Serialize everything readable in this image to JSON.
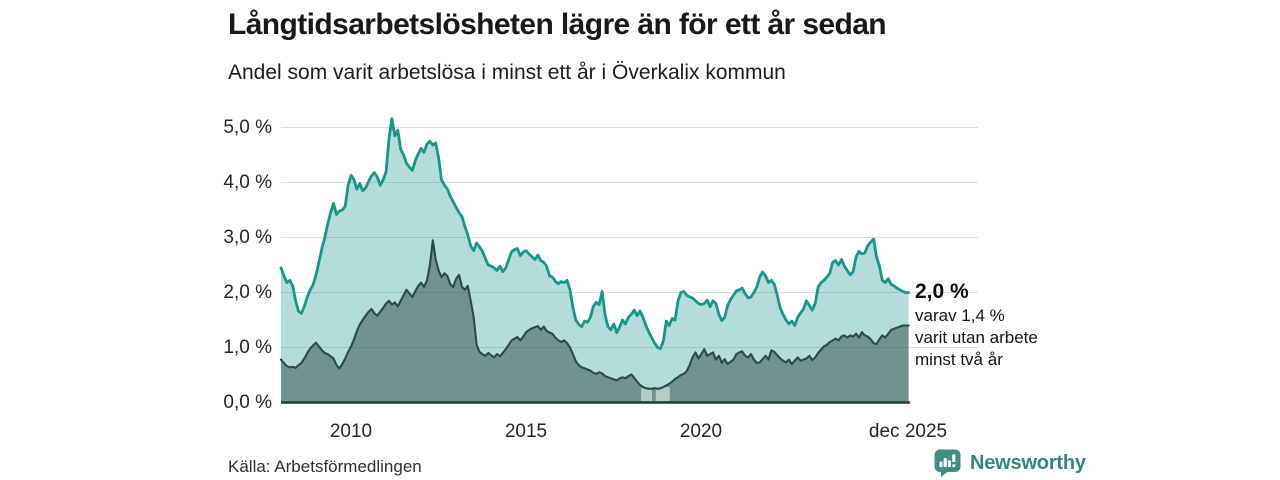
{
  "header": {
    "title": "Långtidsarbetslösheten lägre än för ett år sedan",
    "subtitle": "Andel som varit arbetslösa i minst ett år i Överkalix kommun"
  },
  "annotation": {
    "value": "2,0 %",
    "lines": [
      "varav 1,4 %",
      "varit utan arbete",
      "minst två år"
    ]
  },
  "source": {
    "label": "Källa: Arbetsförmedlingen"
  },
  "branding": {
    "name": "Newsworthy",
    "icon": "bar-chart-speech-bubble",
    "color": "#3a837b",
    "icon_color": "#3f8d83"
  },
  "colors": {
    "series_1yr_line": "#17968a",
    "series_1yr_fill": "rgba(23,150,136,0.32)",
    "series_2yr_line": "#2d4a45",
    "series_2yr_fill": "rgba(45,74,69,0.5)",
    "baseline": "#203f39",
    "gridline": "#dedede"
  },
  "chart_data": {
    "type": "area",
    "title": "Långtidsarbetslösheten lägre än för ett år sedan",
    "subtitle": "Andel som varit arbetslösa i minst ett år i Överkalix kommun",
    "unit": "%",
    "grid": "horizontal",
    "xlim": [
      2008.0,
      2025.9167
    ],
    "ylim": [
      0,
      5.3
    ],
    "x_ticks": [
      {
        "label": "2010",
        "x": 2010
      },
      {
        "label": "2015",
        "x": 2015
      },
      {
        "label": "2020",
        "x": 2020
      },
      {
        "label": "dec 2025",
        "x": 2025.9167
      }
    ],
    "y_ticks": [
      {
        "label": "5,0 %",
        "v": 5
      },
      {
        "label": "4,0 %",
        "v": 4
      },
      {
        "label": "3,0 %",
        "v": 3
      },
      {
        "label": "2,0 %",
        "v": 2
      },
      {
        "label": "1,0 %",
        "v": 1
      },
      {
        "label": "0,0 %",
        "v": 0
      }
    ],
    "end_values": {
      "minst_ett_ar": 2.0,
      "minst_tva_ar": 1.4
    },
    "series": [
      {
        "name": "Arbetslösa minst ett år",
        "start_year": 2008,
        "frequency": "monthly",
        "line_color": "#17968a",
        "fill": "rgba(23,150,136,0.32)",
        "values": [
          2.45,
          2.3,
          2.18,
          2.22,
          2.12,
          1.85,
          1.66,
          1.62,
          1.75,
          1.92,
          2.05,
          2.14,
          2.32,
          2.55,
          2.8,
          3.0,
          3.25,
          3.45,
          3.62,
          3.42,
          3.48,
          3.5,
          3.57,
          3.95,
          4.13,
          4.05,
          3.88,
          3.98,
          3.85,
          3.9,
          4.02,
          4.12,
          4.18,
          4.1,
          3.95,
          4.05,
          4.2,
          4.8,
          5.16,
          4.85,
          4.95,
          4.6,
          4.5,
          4.35,
          4.28,
          4.22,
          4.4,
          4.52,
          4.62,
          4.55,
          4.7,
          4.75,
          4.68,
          4.72,
          4.45,
          4.05,
          3.95,
          3.88,
          3.75,
          3.65,
          3.55,
          3.45,
          3.38,
          3.2,
          3.05,
          2.85,
          2.76,
          2.9,
          2.83,
          2.75,
          2.62,
          2.5,
          2.48,
          2.45,
          2.4,
          2.48,
          2.38,
          2.45,
          2.6,
          2.74,
          2.78,
          2.8,
          2.67,
          2.74,
          2.76,
          2.7,
          2.65,
          2.6,
          2.68,
          2.58,
          2.55,
          2.48,
          2.3,
          2.28,
          2.2,
          2.16,
          2.2,
          2.18,
          2.22,
          2.05,
          1.73,
          1.5,
          1.42,
          1.38,
          1.48,
          1.46,
          1.55,
          1.75,
          1.82,
          1.78,
          2.02,
          1.6,
          1.38,
          1.32,
          1.43,
          1.27,
          1.37,
          1.5,
          1.43,
          1.55,
          1.6,
          1.68,
          1.58,
          1.66,
          1.55,
          1.4,
          1.28,
          1.18,
          1.08,
          1.0,
          0.98,
          1.12,
          1.48,
          1.4,
          1.53,
          1.5,
          1.85,
          2.0,
          2.02,
          1.95,
          1.92,
          1.9,
          1.85,
          1.8,
          1.78,
          1.8,
          1.86,
          1.74,
          1.85,
          1.8,
          1.6,
          1.49,
          1.55,
          1.76,
          1.87,
          1.95,
          2.03,
          2.05,
          2.08,
          1.98,
          1.9,
          1.92,
          2.0,
          2.1,
          2.28,
          2.37,
          2.3,
          2.18,
          2.22,
          2.15,
          1.95,
          1.72,
          1.6,
          1.5,
          1.43,
          1.48,
          1.4,
          1.55,
          1.63,
          1.7,
          1.85,
          1.76,
          1.68,
          1.8,
          2.1,
          2.18,
          2.22,
          2.28,
          2.35,
          2.55,
          2.58,
          2.5,
          2.6,
          2.48,
          2.4,
          2.32,
          2.38,
          2.65,
          2.75,
          2.7,
          2.72,
          2.85,
          2.92,
          2.97,
          2.65,
          2.48,
          2.22,
          2.18,
          2.25,
          2.15,
          2.12,
          2.08,
          2.05,
          2.02,
          2.0,
          2.0
        ]
      },
      {
        "name": "Varav arbetslösa minst två år",
        "start_year": 2008,
        "frequency": "monthly",
        "line_color": "#2d4a45",
        "fill": "rgba(45,74,69,0.5)",
        "values": [
          0.78,
          0.72,
          0.66,
          0.64,
          0.65,
          0.63,
          0.68,
          0.72,
          0.8,
          0.9,
          0.98,
          1.04,
          1.09,
          1.02,
          0.95,
          0.9,
          0.88,
          0.84,
          0.8,
          0.68,
          0.62,
          0.7,
          0.8,
          0.92,
          1.02,
          1.15,
          1.3,
          1.42,
          1.5,
          1.58,
          1.65,
          1.7,
          1.62,
          1.58,
          1.65,
          1.72,
          1.8,
          1.85,
          1.78,
          1.82,
          1.75,
          1.85,
          1.95,
          2.05,
          1.98,
          1.92,
          2.02,
          2.12,
          2.18,
          2.1,
          2.22,
          2.5,
          2.95,
          2.6,
          2.4,
          2.28,
          2.35,
          2.3,
          2.15,
          2.1,
          2.25,
          2.32,
          2.1,
          2.05,
          2.12,
          1.85,
          1.55,
          1.05,
          0.92,
          0.88,
          0.85,
          0.9,
          0.86,
          0.82,
          0.88,
          0.84,
          0.9,
          0.97,
          1.05,
          1.13,
          1.16,
          1.19,
          1.13,
          1.2,
          1.28,
          1.32,
          1.35,
          1.37,
          1.39,
          1.32,
          1.38,
          1.3,
          1.27,
          1.25,
          1.18,
          1.13,
          1.1,
          1.13,
          1.08,
          1.0,
          0.88,
          0.75,
          0.68,
          0.64,
          0.62,
          0.6,
          0.58,
          0.54,
          0.52,
          0.55,
          0.53,
          0.48,
          0.46,
          0.44,
          0.42,
          0.4,
          0.44,
          0.46,
          0.44,
          0.48,
          0.51,
          0.45,
          0.38,
          0.32,
          0.28,
          0.26,
          0.25,
          0.25,
          0.26,
          0.25,
          0.26,
          0.28,
          0.31,
          0.34,
          0.38,
          0.43,
          0.46,
          0.5,
          0.52,
          0.57,
          0.68,
          0.82,
          0.91,
          0.8,
          0.88,
          0.97,
          0.85,
          0.88,
          0.91,
          0.78,
          0.85,
          0.72,
          0.79,
          0.7,
          0.74,
          0.78,
          0.88,
          0.91,
          0.93,
          0.85,
          0.82,
          0.88,
          0.78,
          0.72,
          0.73,
          0.79,
          0.85,
          0.78,
          0.95,
          0.92,
          0.86,
          0.8,
          0.76,
          0.73,
          0.78,
          0.7,
          0.76,
          0.82,
          0.76,
          0.78,
          0.8,
          0.85,
          0.77,
          0.82,
          0.9,
          0.96,
          1.02,
          1.05,
          1.1,
          1.13,
          1.16,
          1.13,
          1.2,
          1.22,
          1.18,
          1.22,
          1.2,
          1.25,
          1.18,
          1.28,
          1.22,
          1.2,
          1.15,
          1.08,
          1.06,
          1.15,
          1.22,
          1.18,
          1.25,
          1.32,
          1.34,
          1.36,
          1.38,
          1.4,
          1.4,
          1.4
        ]
      }
    ],
    "faded_markers": [
      {
        "from": 2018.28,
        "to": 2018.59,
        "top": 0.28
      },
      {
        "from": 2018.7,
        "to": 2019.1,
        "top": 0.28
      }
    ]
  }
}
